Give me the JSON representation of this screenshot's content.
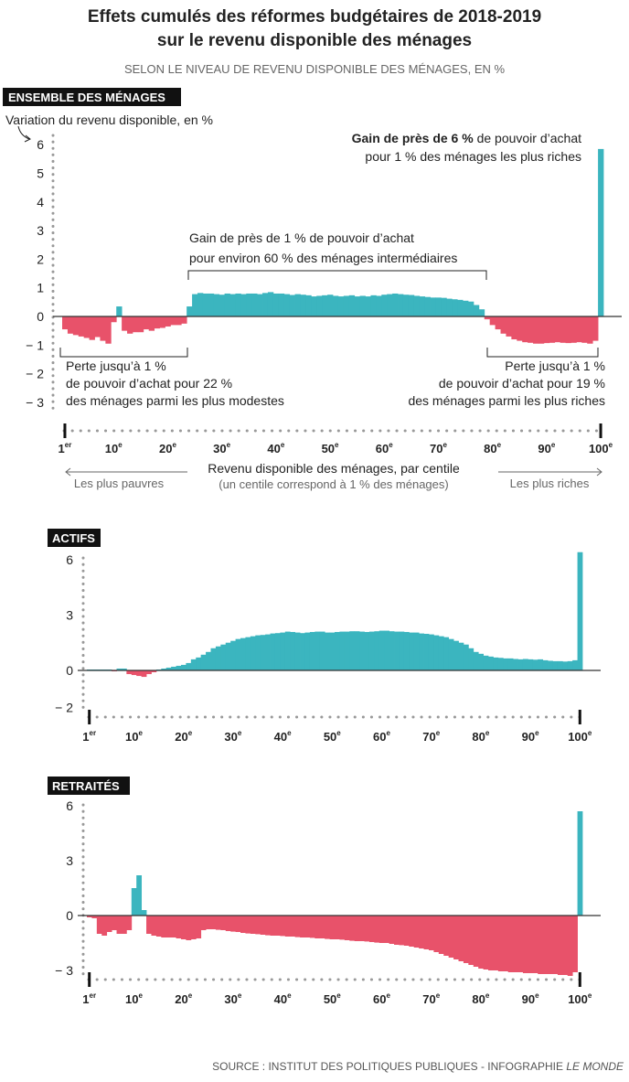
{
  "title_line1": "Effets cumulés des réformes budgétaires de 2018-2019",
  "title_line2": "sur le revenu disponible des ménages",
  "subtitle": "SELON LE NIVEAU DE REVENU DISPONIBLE DES MÉNAGES, EN %",
  "source_prefix": "SOURCE : INSTITUT DES POLITIQUES PUBLIQUES - INFOGRAPHIE ",
  "source_italic": "LE MONDE",
  "colors": {
    "positive": "#3bb5bf",
    "negative": "#e8526a",
    "text": "#222222",
    "axis": "#555555",
    "tag_bg": "#111111"
  },
  "annotations": {
    "top_gain_bold": "Gain de près de 6 %",
    "top_gain_rest": " de pouvoir d’achat",
    "top_gain_line2": "pour 1 % des ménages les plus riches",
    "middle_line1": "Gain de près de 1 % de pouvoir d’achat",
    "middle_line2": "pour environ 60 % des ménages intermédiaires",
    "left_line1": "Perte jusqu’à 1 %",
    "left_line2": "de pouvoir d’achat pour 22 %",
    "left_line3": "des ménages parmi les plus modestes",
    "right_line1": "Perte jusqu’à 1 %",
    "right_line2": "de pouvoir d’achat pour 19 %",
    "right_line3": "des ménages parmi les plus riches"
  },
  "xaxis": {
    "title": "Revenu disponible des ménages, par centile",
    "subtitle": "(un centile correspond à 1 % des ménages)",
    "left_note": "Les plus pauvres",
    "right_note": "Les plus riches",
    "tick_labels": [
      {
        "num": "1",
        "sup": "er"
      },
      {
        "num": "10",
        "sup": "e"
      },
      {
        "num": "20",
        "sup": "e"
      },
      {
        "num": "30",
        "sup": "e"
      },
      {
        "num": "40",
        "sup": "e"
      },
      {
        "num": "50",
        "sup": "e"
      },
      {
        "num": "60",
        "sup": "e"
      },
      {
        "num": "70",
        "sup": "e"
      },
      {
        "num": "80",
        "sup": "e"
      },
      {
        "num": "90",
        "sup": "e"
      },
      {
        "num": "100",
        "sup": "e"
      }
    ],
    "tick_centiles": [
      1,
      10,
      20,
      30,
      40,
      50,
      60,
      70,
      80,
      90,
      100
    ]
  },
  "chart_data": [
    {
      "type": "bar",
      "panel_label": "ENSEMBLE DES MÉNAGES",
      "ylabel": "Variation du revenu disponible, en %",
      "yticks": [
        6,
        5,
        4,
        3,
        2,
        1,
        0,
        -1,
        -2,
        -3
      ],
      "ytick_labels": [
        "6",
        "5",
        "4",
        "3",
        "2",
        "1",
        "0",
        "− 1",
        "− 2",
        "− 3"
      ],
      "ylim": [
        -3.4,
        6.2
      ],
      "x": "centiles 1-100",
      "values": [
        -0.45,
        -0.6,
        -0.65,
        -0.7,
        -0.75,
        -0.82,
        -0.72,
        -0.85,
        -0.95,
        -0.2,
        0.35,
        -0.5,
        -0.6,
        -0.55,
        -0.55,
        -0.45,
        -0.5,
        -0.42,
        -0.4,
        -0.35,
        -0.3,
        -0.3,
        -0.25,
        0.35,
        0.78,
        0.82,
        0.8,
        0.8,
        0.78,
        0.76,
        0.8,
        0.78,
        0.8,
        0.78,
        0.8,
        0.8,
        0.78,
        0.82,
        0.85,
        0.8,
        0.8,
        0.78,
        0.75,
        0.78,
        0.76,
        0.74,
        0.7,
        0.72,
        0.74,
        0.76,
        0.72,
        0.7,
        0.72,
        0.74,
        0.7,
        0.72,
        0.7,
        0.74,
        0.72,
        0.76,
        0.78,
        0.8,
        0.78,
        0.76,
        0.75,
        0.72,
        0.7,
        0.68,
        0.66,
        0.66,
        0.65,
        0.62,
        0.6,
        0.58,
        0.55,
        0.52,
        0.4,
        0.25,
        -0.1,
        -0.3,
        -0.45,
        -0.6,
        -0.7,
        -0.8,
        -0.85,
        -0.9,
        -0.92,
        -0.95,
        -0.95,
        -0.93,
        -0.92,
        -0.9,
        -0.92,
        -0.93,
        -0.92,
        -0.9,
        -0.92,
        -0.95,
        -0.85,
        5.85
      ]
    },
    {
      "type": "bar",
      "panel_label": "ACTIFS",
      "yticks": [
        6,
        3,
        0,
        -2
      ],
      "ytick_labels": [
        "6",
        "3",
        "0",
        "− 2"
      ],
      "ylim": [
        -2.2,
        6.6
      ],
      "x": "centiles 1-100",
      "values": [
        0.05,
        0.05,
        0.05,
        0.05,
        0.05,
        -0.05,
        0.1,
        0.1,
        -0.2,
        -0.25,
        -0.3,
        -0.35,
        -0.2,
        -0.1,
        0.05,
        0.1,
        0.15,
        0.2,
        0.25,
        0.3,
        0.4,
        0.6,
        0.7,
        0.85,
        1.0,
        1.2,
        1.3,
        1.4,
        1.5,
        1.6,
        1.7,
        1.75,
        1.8,
        1.85,
        1.9,
        1.92,
        1.95,
        2.0,
        2.02,
        2.05,
        2.1,
        2.08,
        2.05,
        2.02,
        2.05,
        2.08,
        2.1,
        2.1,
        2.05,
        2.05,
        2.08,
        2.1,
        2.1,
        2.12,
        2.12,
        2.1,
        2.08,
        2.1,
        2.12,
        2.15,
        2.15,
        2.12,
        2.1,
        2.1,
        2.08,
        2.05,
        2.05,
        2.0,
        1.98,
        1.95,
        1.9,
        1.85,
        1.8,
        1.7,
        1.6,
        1.5,
        1.4,
        1.2,
        1.0,
        0.9,
        0.8,
        0.75,
        0.7,
        0.68,
        0.65,
        0.65,
        0.62,
        0.6,
        0.62,
        0.6,
        0.58,
        0.6,
        0.55,
        0.52,
        0.5,
        0.5,
        0.48,
        0.5,
        0.55,
        6.4
      ]
    },
    {
      "type": "bar",
      "panel_label": "RETRAITÉS",
      "yticks": [
        6,
        3,
        0,
        -3
      ],
      "ytick_labels": [
        "6",
        "3",
        "0",
        "− 3"
      ],
      "ylim": [
        -3.6,
        6.4
      ],
      "x": "centiles 1-100",
      "values": [
        -0.1,
        -0.15,
        -1.0,
        -1.1,
        -0.9,
        -0.8,
        -1.0,
        -1.0,
        -0.8,
        1.5,
        2.2,
        0.3,
        -1.0,
        -1.1,
        -1.15,
        -1.2,
        -1.2,
        -1.2,
        -1.25,
        -1.3,
        -1.35,
        -1.3,
        -1.25,
        -0.8,
        -0.75,
        -0.75,
        -0.78,
        -0.8,
        -0.85,
        -0.88,
        -0.9,
        -0.95,
        -0.98,
        -1.0,
        -1.02,
        -1.05,
        -1.08,
        -1.1,
        -1.1,
        -1.12,
        -1.15,
        -1.15,
        -1.18,
        -1.2,
        -1.2,
        -1.22,
        -1.25,
        -1.25,
        -1.28,
        -1.3,
        -1.3,
        -1.32,
        -1.35,
        -1.38,
        -1.4,
        -1.4,
        -1.42,
        -1.45,
        -1.48,
        -1.5,
        -1.5,
        -1.55,
        -1.6,
        -1.62,
        -1.65,
        -1.7,
        -1.75,
        -1.8,
        -1.85,
        -1.9,
        -2.0,
        -2.1,
        -2.2,
        -2.3,
        -2.4,
        -2.5,
        -2.6,
        -2.7,
        -2.8,
        -2.9,
        -2.95,
        -3.0,
        -3.0,
        -3.05,
        -3.05,
        -3.1,
        -3.1,
        -3.1,
        -3.15,
        -3.15,
        -3.15,
        -3.2,
        -3.2,
        -3.2,
        -3.2,
        -3.25,
        -3.25,
        -3.3,
        -3.1,
        5.7
      ]
    }
  ]
}
